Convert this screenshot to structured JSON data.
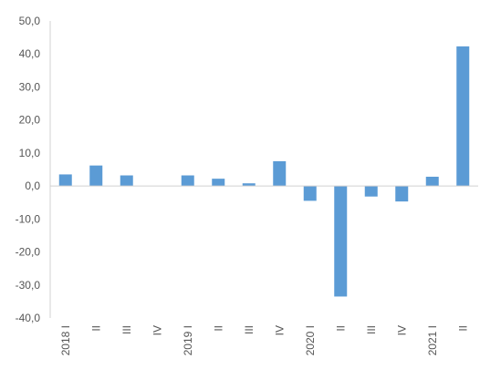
{
  "chart_data": {
    "type": "bar",
    "title": "",
    "xlabel": "",
    "ylabel": "",
    "categories": [
      "2018 I",
      "II",
      "III",
      "IV",
      "2019 I",
      "II",
      "III",
      "IV",
      "2020 I",
      "II",
      "III",
      "IV",
      "2021 I",
      "II"
    ],
    "values": [
      3.5,
      6.2,
      3.2,
      0.0,
      3.2,
      2.2,
      0.8,
      7.5,
      -4.5,
      -33.5,
      -3.2,
      -4.7,
      2.8,
      42.3
    ],
    "ylim": [
      -40,
      50
    ],
    "yticks": [
      -40,
      -30,
      -20,
      -10,
      0,
      10,
      20,
      30,
      40,
      50
    ],
    "ytick_labels": [
      "-40,0",
      "-30,0",
      "-20,0",
      "-10,0",
      "0,0",
      "10,0",
      "20,0",
      "30,0",
      "40,0",
      "50,0"
    ],
    "grid": false,
    "legend": "none",
    "bar_color": "#5b9bd5"
  }
}
